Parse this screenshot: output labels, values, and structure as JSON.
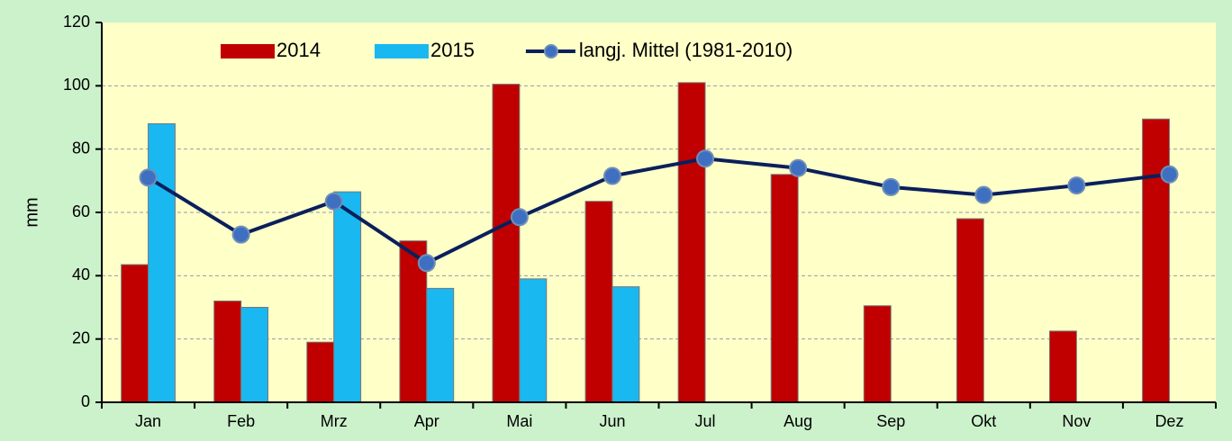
{
  "chart_data": {
    "type": "bar",
    "y_label": "mm",
    "categories": [
      "Jan",
      "Feb",
      "Mrz",
      "Apr",
      "Mai",
      "Jun",
      "Jul",
      "Aug",
      "Sep",
      "Okt",
      "Nov",
      "Dez"
    ],
    "series": [
      {
        "name": "2014",
        "type": "bar",
        "color": "#c00000",
        "values": [
          43.5,
          32,
          19,
          51,
          100.5,
          63.5,
          101,
          72,
          30.5,
          58,
          22.5,
          89.5
        ]
      },
      {
        "name": "2015",
        "type": "bar",
        "color": "#1ab8f0",
        "values": [
          88,
          30,
          66.5,
          36,
          39,
          36.5,
          null,
          null,
          null,
          null,
          null,
          null
        ]
      },
      {
        "name": "langj. Mittel (1981-2010)",
        "type": "line",
        "color": "#0a1f5c",
        "marker_color": "#3f6fc0",
        "values": [
          71,
          53,
          63.5,
          44,
          58.5,
          71.5,
          77,
          74,
          68,
          65.5,
          68.5,
          72
        ]
      }
    ],
    "ylim": [
      0,
      120
    ],
    "yticks": [
      0,
      20,
      40,
      60,
      80,
      100,
      120
    ],
    "grid": true,
    "legend": "top"
  }
}
